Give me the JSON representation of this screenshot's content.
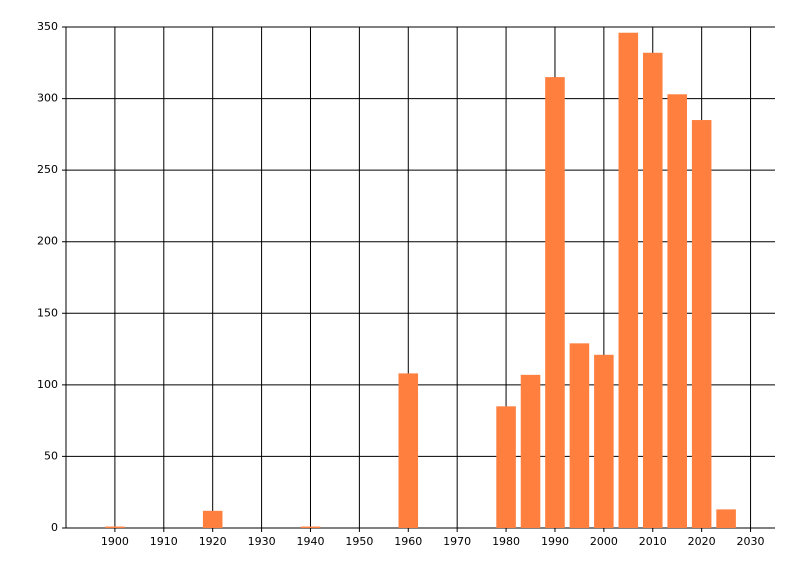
{
  "chart_data": {
    "type": "bar",
    "x": [
      1900,
      1920,
      1940,
      1960,
      1980,
      1985,
      1990,
      1995,
      2000,
      2005,
      2010,
      2015,
      2020,
      2025
    ],
    "values": [
      1,
      12,
      1,
      108,
      85,
      107,
      315,
      129,
      121,
      346,
      332,
      303,
      285,
      13
    ],
    "color": "#ff7f3f",
    "xlim": [
      1890,
      2035
    ],
    "xticks": [
      1900,
      1910,
      1920,
      1930,
      1940,
      1950,
      1960,
      1970,
      1980,
      1990,
      2000,
      2010,
      2020,
      2030
    ],
    "ylim": [
      0,
      350
    ],
    "yticks": [
      0,
      50,
      100,
      150,
      200,
      250,
      300,
      350
    ],
    "grid": true
  }
}
